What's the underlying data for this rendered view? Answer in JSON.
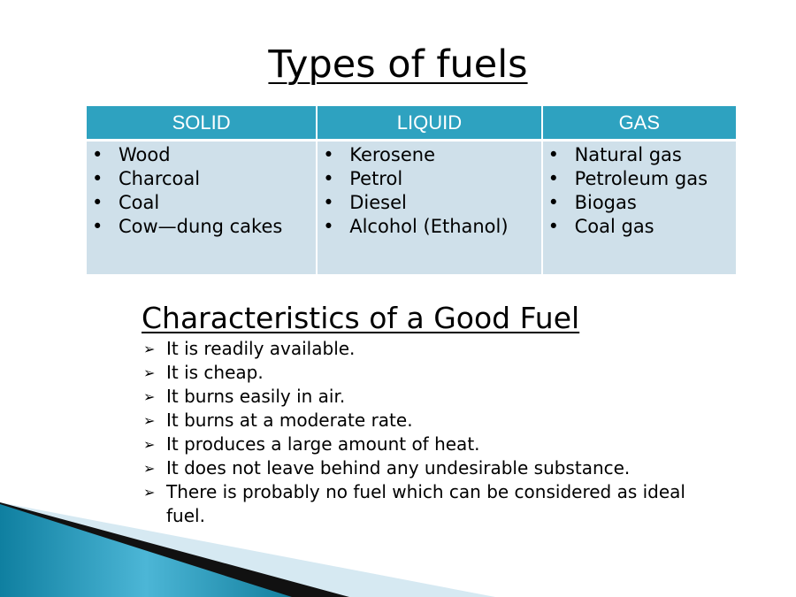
{
  "title": "Types of fuels",
  "table": {
    "headers": [
      "SOLID",
      "LIQUID",
      "GAS"
    ],
    "columns": [
      [
        "Wood",
        "Charcoal",
        "Coal",
        "Cow—dung cakes"
      ],
      [
        "Kerosene",
        "Petrol",
        "Diesel",
        "Alcohol (Ethanol)"
      ],
      [
        "Natural gas",
        "Petroleum gas",
        "Biogas",
        "Coal gas"
      ]
    ]
  },
  "characteristics": {
    "heading": "Characteristics of a Good Fuel",
    "items": [
      "It is readily available.",
      "It is cheap.",
      "It burns easily in air.",
      "It burns at a moderate rate.",
      "It produces a large amount of heat.",
      "It does not leave behind any undesirable substance.",
      "There is probably no fuel which can be considered as ideal fuel."
    ]
  },
  "colors": {
    "header": "#2ea2c0",
    "body": "#cfe0ea"
  }
}
